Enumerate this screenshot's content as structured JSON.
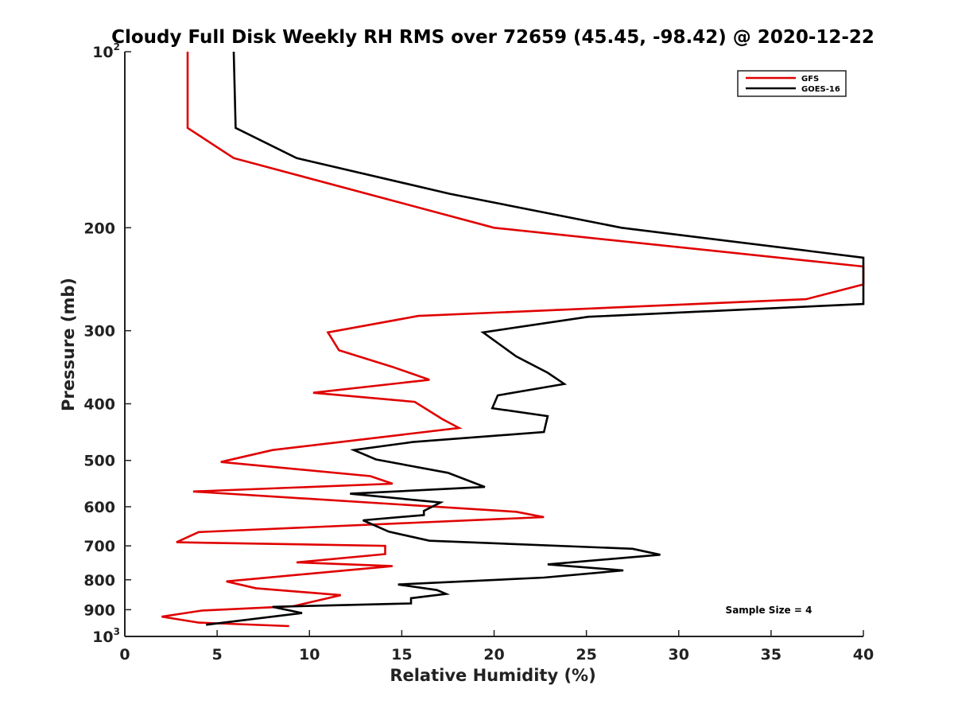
{
  "chart_data": {
    "type": "line",
    "title": "Cloudy Full Disk Weekly RH RMS over 72659 (45.45, -98.42) @ 2020-12-22",
    "xlabel": "Relative Humidity (%)",
    "ylabel": "Pressure (mb)",
    "xlim": [
      0,
      40
    ],
    "ylim": [
      100,
      1000
    ],
    "y_scale": "log",
    "y_reversed": true,
    "x_ticks": [
      "0",
      "5",
      "10",
      "15",
      "20",
      "25",
      "30",
      "35",
      "40"
    ],
    "y_ticks": [
      {
        "value": 100,
        "label": "10",
        "sup": "2"
      },
      {
        "value": 200,
        "label": "200"
      },
      {
        "value": 300,
        "label": "300"
      },
      {
        "value": 400,
        "label": "400"
      },
      {
        "value": 500,
        "label": "500"
      },
      {
        "value": 600,
        "label": "600"
      },
      {
        "value": 700,
        "label": "700"
      },
      {
        "value": 800,
        "label": "800"
      },
      {
        "value": 900,
        "label": "900"
      },
      {
        "value": 1000,
        "label": "10",
        "sup": "3"
      }
    ],
    "legend_position": "top-right",
    "grid": false,
    "annotation": "Sample Size = 4",
    "series": [
      {
        "name": "GFS",
        "color": "#e00000",
        "points": [
          [
            3.4,
            100
          ],
          [
            3.4,
            135
          ],
          [
            5.9,
            152
          ],
          [
            20.0,
            200
          ],
          [
            40.0,
            233
          ],
          [
            40.0,
            250
          ],
          [
            36.9,
            265
          ],
          [
            15.9,
            283
          ],
          [
            11.0,
            302
          ],
          [
            11.6,
            324
          ],
          [
            14.5,
            346
          ],
          [
            16.5,
            364
          ],
          [
            10.2,
            383
          ],
          [
            15.7,
            397
          ],
          [
            17.2,
            425
          ],
          [
            18.1,
            440
          ],
          [
            8.0,
            480
          ],
          [
            5.2,
            503
          ],
          [
            13.3,
            532
          ],
          [
            14.5,
            548
          ],
          [
            3.7,
            565
          ],
          [
            21.2,
            612
          ],
          [
            22.7,
            625
          ],
          [
            4.0,
            663
          ],
          [
            2.8,
            690
          ],
          [
            14.1,
            700
          ],
          [
            14.1,
            723
          ],
          [
            9.3,
            747
          ],
          [
            14.5,
            758
          ],
          [
            5.5,
            805
          ],
          [
            7.1,
            827
          ],
          [
            11.7,
            850
          ],
          [
            9.1,
            888
          ],
          [
            4.2,
            903
          ],
          [
            2.0,
            925
          ],
          [
            4.0,
            947
          ],
          [
            8.9,
            960
          ]
        ]
      },
      {
        "name": "GOES-16",
        "color": "#000000",
        "points": [
          [
            5.9,
            100
          ],
          [
            6.0,
            135
          ],
          [
            9.3,
            152
          ],
          [
            17.6,
            175
          ],
          [
            26.9,
            200
          ],
          [
            40.0,
            225
          ],
          [
            40.0,
            270
          ],
          [
            25.1,
            284
          ],
          [
            19.4,
            302
          ],
          [
            21.2,
            332
          ],
          [
            22.9,
            354
          ],
          [
            23.8,
            370
          ],
          [
            20.2,
            387
          ],
          [
            19.9,
            407
          ],
          [
            22.9,
            420
          ],
          [
            22.7,
            447
          ],
          [
            15.6,
            465
          ],
          [
            12.4,
            480
          ],
          [
            13.6,
            498
          ],
          [
            17.5,
            525
          ],
          [
            19.5,
            555
          ],
          [
            12.2,
            570
          ],
          [
            17.1,
            590
          ],
          [
            16.2,
            610
          ],
          [
            16.2,
            620
          ],
          [
            12.9,
            633
          ],
          [
            14.3,
            662
          ],
          [
            16.5,
            686
          ],
          [
            27.5,
            708
          ],
          [
            29.0,
            725
          ],
          [
            22.9,
            753
          ],
          [
            27.0,
            771
          ],
          [
            22.7,
            793
          ],
          [
            14.8,
            815
          ],
          [
            16.9,
            833
          ],
          [
            17.4,
            846
          ],
          [
            15.5,
            860
          ],
          [
            15.5,
            878
          ],
          [
            8.0,
            890
          ],
          [
            9.6,
            912
          ],
          [
            4.4,
            955
          ]
        ]
      }
    ]
  }
}
